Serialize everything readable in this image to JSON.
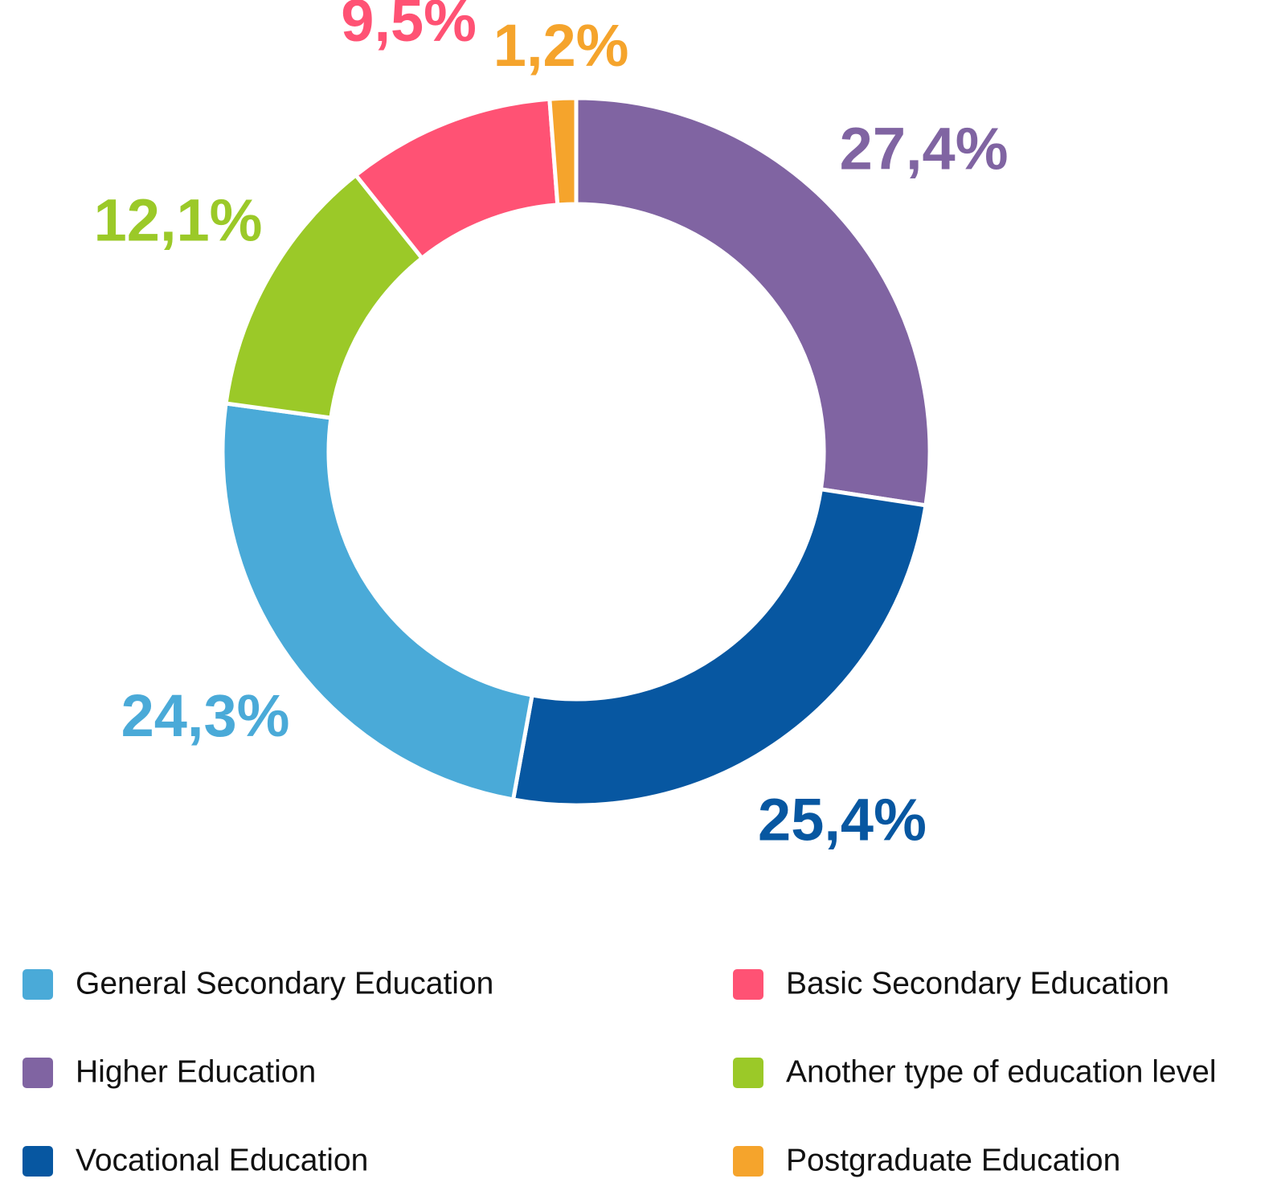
{
  "chart_data": {
    "type": "donut",
    "categories": [
      "Higher Education",
      "Vocational Education",
      "General Secondary Education",
      "Another type of education level",
      "Basic Secondary Education",
      "Postgraduate Education"
    ],
    "values": [
      27.4,
      25.4,
      24.3,
      12.1,
      9.5,
      1.2
    ],
    "value_labels": [
      "27,4%",
      "25,4%",
      "24,3%",
      "12,1%",
      "9,5%",
      "1,2%"
    ],
    "colors": [
      "#8064a2",
      "#0757a1",
      "#4aaad8",
      "#9bc928",
      "#ff5274",
      "#f5a42c"
    ]
  }
}
